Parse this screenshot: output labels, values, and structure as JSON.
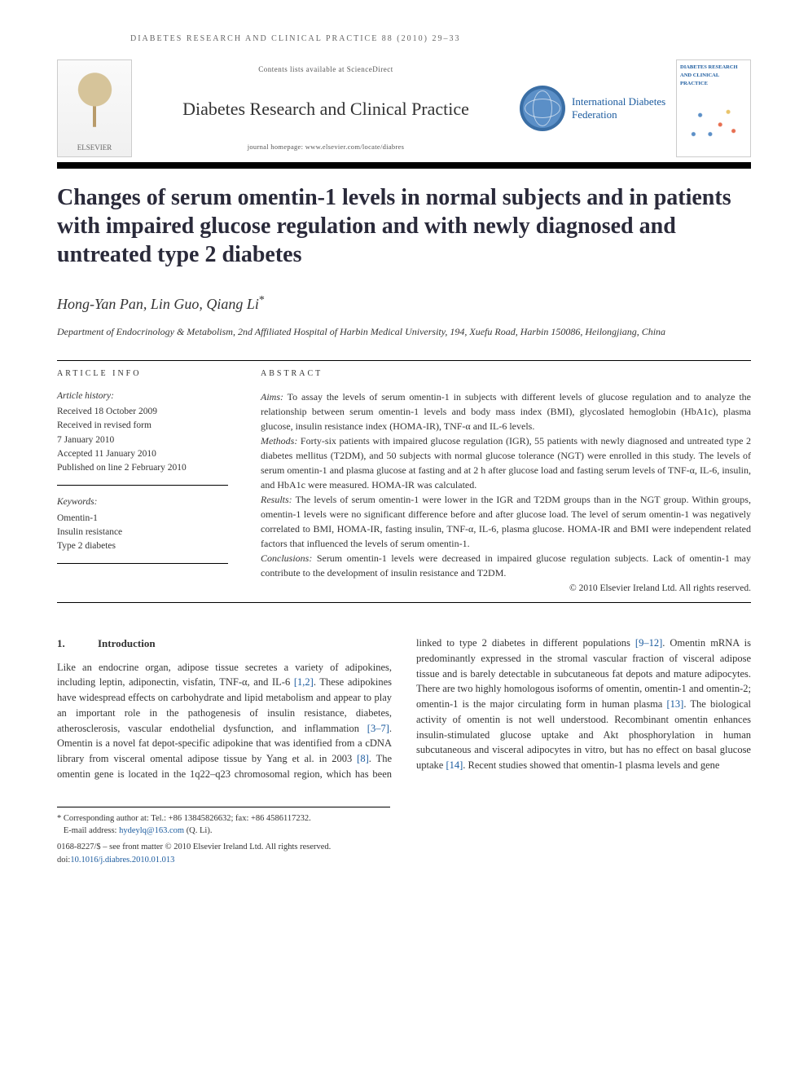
{
  "running_head": "DIABETES RESEARCH AND CLINICAL PRACTICE 88 (2010) 29–33",
  "masthead": {
    "publisher": "ELSEVIER",
    "contents_line": "Contents lists available at ScienceDirect",
    "journal_name": "Diabetes Research and Clinical Practice",
    "homepage": "journal homepage: www.elsevier.com/locate/diabres",
    "society": "International Diabetes Federation",
    "cover_label": "DIABETES RESEARCH AND CLINICAL PRACTICE"
  },
  "title": "Changes of serum omentin-1 levels in normal subjects and in patients with impaired glucose regulation and with newly diagnosed and untreated type 2 diabetes",
  "authors": "Hong-Yan Pan, Lin Guo, Qiang Li",
  "corr_mark": "*",
  "affiliation": "Department of Endocrinology & Metabolism, 2nd Affiliated Hospital of Harbin Medical University, 194, Xuefu Road, Harbin 150086, Heilongjiang, China",
  "labels": {
    "article_info": "ARTICLE INFO",
    "abstract": "ABSTRACT",
    "history_head": "Article history:",
    "keywords_head": "Keywords:"
  },
  "history": {
    "received": "Received 18 October 2009",
    "revised1": "Received in revised form",
    "revised2": "7 January 2010",
    "accepted": "Accepted 11 January 2010",
    "online": "Published on line 2 February 2010"
  },
  "keywords": [
    "Omentin-1",
    "Insulin resistance",
    "Type 2 diabetes"
  ],
  "abstract": {
    "aims_label": "Aims:",
    "aims": "To assay the levels of serum omentin-1 in subjects with different levels of glucose regulation and to analyze the relationship between serum omentin-1 levels and body mass index (BMI), glycoslated hemoglobin (HbA1c), plasma glucose, insulin resistance index (HOMA-IR), TNF-α and IL-6 levels.",
    "methods_label": "Methods:",
    "methods": "Forty-six patients with impaired glucose regulation (IGR), 55 patients with newly diagnosed and untreated type 2 diabetes mellitus (T2DM), and 50 subjects with normal glucose tolerance (NGT) were enrolled in this study. The levels of serum omentin-1 and plasma glucose at fasting and at 2 h after glucose load and fasting serum levels of TNF-α, IL-6, insulin, and HbA1c were measured. HOMA-IR was calculated.",
    "results_label": "Results:",
    "results": "The levels of serum omentin-1 were lower in the IGR and T2DM groups than in the NGT group. Within groups, omentin-1 levels were no significant difference before and after glucose load. The level of serum omentin-1 was negatively correlated to BMI, HOMA-IR, fasting insulin, TNF-α, IL-6, plasma glucose. HOMA-IR and BMI were independent related factors that influenced the levels of serum omentin-1.",
    "conclusions_label": "Conclusions:",
    "conclusions": "Serum omentin-1 levels were decreased in impaired glucose regulation subjects. Lack of omentin-1 may contribute to the development of insulin resistance and T2DM.",
    "copyright": "© 2010 Elsevier Ireland Ltd. All rights reserved."
  },
  "intro": {
    "num": "1.",
    "head": "Introduction",
    "col1": "Like an endocrine organ, adipose tissue secretes a variety of adipokines, including leptin, adiponectin, visfatin, TNF-α, and IL-6 [1,2]. These adipokines have widespread effects on carbohydrate and lipid metabolism and appear to play an important role in the pathogenesis of insulin resistance, diabetes, atherosclerosis, vascular endothelial dysfunction, and inflammation [3–7]. Omentin is a novel fat depot-specific adipokine that was identified from a cDNA library from visceral omental adipose tissue by Yang et al. in 2003 [8]. The omentin gene is located in the 1q22–q23 chromosomal region,",
    "col2": "which has been linked to type 2 diabetes in different populations [9–12]. Omentin mRNA is predominantly expressed in the stromal vascular fraction of visceral adipose tissue and is barely detectable in subcutaneous fat depots and mature adipocytes. There are two highly homologous isoforms of omentin, omentin-1 and omentin-2; omentin-1 is the major circulating form in human plasma [13]. The biological activity of omentin is not well understood. Recombinant omentin enhances insulin-stimulated glucose uptake and Akt phosphorylation in human subcutaneous and visceral adipocytes in vitro, but has no effect on basal glucose uptake [14]. Recent studies showed that omentin-1 plasma levels and gene"
  },
  "footnotes": {
    "corr": "* Corresponding author at: Tel.: +86 13845826632; fax: +86 4586117232.",
    "email_label": "E-mail address:",
    "email": "hydeylq@163.com",
    "email_who": "(Q. Li).",
    "issn": "0168-8227/$ – see front matter © 2010 Elsevier Ireland Ltd. All rights reserved.",
    "doi_label": "doi:",
    "doi": "10.1016/j.diabres.2010.01.013"
  },
  "refs": {
    "r12": "[1,2]",
    "r37": "[3–7]",
    "r8": "[8]",
    "r912": "[9–12]",
    "r13": "[13]",
    "r14": "[14]"
  }
}
